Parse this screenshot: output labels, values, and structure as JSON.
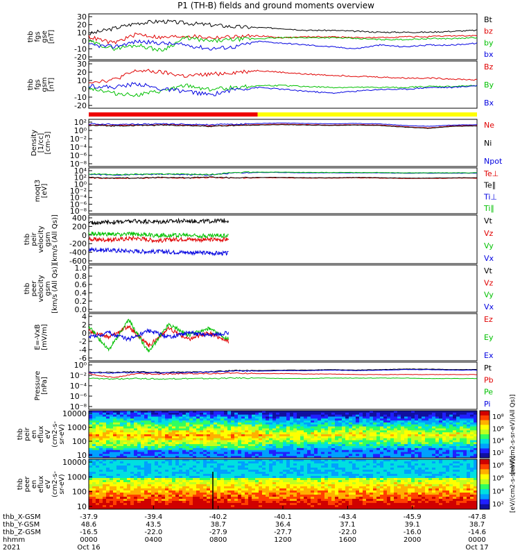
{
  "title": "P1 (TH-B) fields and ground moments overview",
  "chart_data": [
    {
      "type": "line",
      "panel_id": "fgs_gse",
      "ylabel": [
        "thb",
        "fgs",
        "gse",
        "[nT]"
      ],
      "yticks": [
        "30",
        "20",
        "10",
        "0",
        "-10",
        "-20"
      ],
      "ylim": [
        -20,
        30
      ],
      "legend_position": "right",
      "series": [
        {
          "name": "Bt",
          "color": "#000000",
          "values": [
            8,
            14,
            20,
            22,
            20,
            18,
            16,
            15,
            14,
            12,
            12,
            11,
            10,
            10,
            10,
            11,
            12
          ]
        },
        {
          "name": "bz",
          "color": "#e00000",
          "values": [
            5,
            -2,
            8,
            4,
            6,
            4,
            5,
            6,
            4,
            5,
            5,
            4,
            4,
            5,
            5,
            6,
            6
          ]
        },
        {
          "name": "by",
          "color": "#00c000",
          "values": [
            0,
            -8,
            -4,
            -10,
            4,
            0,
            2,
            3,
            4,
            4,
            4,
            3,
            2,
            2,
            3,
            3,
            4
          ]
        },
        {
          "name": "bx",
          "color": "#0000e0",
          "values": [
            -4,
            -6,
            0,
            -2,
            -4,
            -8,
            -6,
            0,
            -2,
            -4,
            -6,
            -8,
            -4,
            -6,
            -4,
            -4,
            -2
          ]
        }
      ]
    },
    {
      "type": "line",
      "panel_id": "fgs_gsm",
      "ylabel": [
        "thb",
        "fgs",
        "gsm",
        "[nT]"
      ],
      "yticks": [
        "30",
        "20",
        "10",
        "0",
        "-10",
        "-20"
      ],
      "ylim": [
        -20,
        30
      ],
      "legend_position": "right",
      "series": [
        {
          "name": "Bz",
          "color": "#e00000",
          "values": [
            8,
            10,
            20,
            18,
            14,
            16,
            18,
            20,
            18,
            16,
            15,
            14,
            13,
            12,
            12,
            11,
            10
          ]
        },
        {
          "name": "By",
          "color": "#00c000",
          "values": [
            2,
            -4,
            -6,
            -2,
            4,
            0,
            2,
            4,
            4,
            3,
            2,
            2,
            2,
            2,
            3,
            3,
            4
          ]
        },
        {
          "name": "Bx",
          "color": "#0000e0",
          "values": [
            4,
            2,
            6,
            0,
            -2,
            -6,
            0,
            2,
            0,
            -2,
            -4,
            -2,
            0,
            0,
            2,
            2,
            4
          ]
        }
      ]
    },
    {
      "type": "line",
      "panel_id": "density",
      "ylabel": [
        "Density",
        "[1/cc]",
        "[cm-3]"
      ],
      "yticks": [
        "10²",
        "10⁰",
        "10⁻²",
        "10⁻⁴",
        "10⁻⁶",
        "10⁻⁸"
      ],
      "log_scale": true,
      "ylim_exp": [
        -9,
        2.5
      ],
      "legend_position": "right",
      "series": [
        {
          "name": "Ne",
          "color": "#e00000",
          "values": [
            1.2,
            1.0,
            1.1,
            1.2,
            1.1,
            0.9,
            1.1,
            1.2,
            1.3,
            1.2,
            1.1,
            1.2,
            1.1,
            0.7,
            0.4,
            0.9,
            1.0
          ]
        },
        {
          "name": "Ni",
          "color": "#000000",
          "values": [
            1.0,
            0.9,
            1.0,
            1.1,
            1.0,
            0.8,
            1.0,
            1.1,
            1.2,
            1.1,
            1.0,
            1.1,
            1.0,
            0.6,
            0.3,
            0.8,
            0.9
          ]
        },
        {
          "name": "Npot",
          "color": "#0000e0",
          "values": [
            1.4,
            1.3,
            1.3,
            1.4,
            1.3,
            1.2,
            1.3,
            1.5,
            1.6,
            1.5,
            1.4,
            1.5,
            1.4,
            1.0,
            0.8,
            1.1,
            1.2
          ]
        }
      ]
    },
    {
      "type": "line",
      "panel_id": "temperature",
      "ylabel": [
        "moqt3",
        "[eV]"
      ],
      "yticks": [
        "10⁴",
        "10²",
        "10⁰",
        "10⁻²",
        "10⁻⁴",
        "10⁻⁶",
        "10⁻⁸"
      ],
      "log_scale": true,
      "ylim_exp": [
        -9,
        4
      ],
      "legend_position": "right",
      "series": [
        {
          "name": "Te⊥",
          "color": "#e00000",
          "values": [
            1.2,
            1.0,
            1.1,
            1.2,
            1.1,
            1.3,
            1.1,
            1.2,
            1.2,
            1.1,
            1.1,
            1.2,
            1.1,
            1.0,
            1.0,
            1.1,
            1.1
          ]
        },
        {
          "name": "Te∥",
          "color": "#000000",
          "values": [
            1.3,
            1.1,
            1.2,
            1.3,
            1.2,
            1.4,
            1.2,
            1.3,
            1.3,
            1.2,
            1.2,
            1.3,
            1.2,
            1.1,
            1.1,
            1.2,
            1.2
          ]
        },
        {
          "name": "Ti⊥",
          "color": "#0000e0",
          "values": [
            2.2,
            2.0,
            2.1,
            2.2,
            2.1,
            2.0,
            2.6,
            2.7,
            2.7,
            2.6,
            2.6,
            2.6,
            2.6,
            2.5,
            2.5,
            2.5,
            2.5
          ]
        },
        {
          "name": "Ti∥",
          "color": "#00c000",
          "values": [
            2.3,
            2.1,
            2.2,
            2.3,
            2.2,
            2.1,
            2.7,
            2.8,
            2.8,
            2.7,
            2.7,
            2.7,
            2.7,
            2.6,
            2.6,
            2.6,
            2.6
          ]
        }
      ]
    },
    {
      "type": "line",
      "panel_id": "peir_velocity",
      "ylabel": [
        "thb",
        "peir",
        "velocity",
        "gsm",
        "[km/s (All Qs)]"
      ],
      "yticks": [
        "400",
        "200",
        "0",
        "-200",
        "-400",
        "-600"
      ],
      "ylim": [
        -600,
        500
      ],
      "xmax_fraction": 0.36,
      "legend_position": "right",
      "series": [
        {
          "name": "Vt",
          "color": "#000000",
          "values": [
            320,
            340,
            360,
            350,
            370,
            360,
            380
          ]
        },
        {
          "name": "Vz",
          "color": "#e00000",
          "values": [
            -50,
            -60,
            -20,
            -80,
            -40,
            -60,
            -50
          ]
        },
        {
          "name": "Vy",
          "color": "#00c000",
          "values": [
            80,
            60,
            70,
            40,
            50,
            30,
            40
          ]
        },
        {
          "name": "Vx",
          "color": "#0000e0",
          "values": [
            -280,
            -300,
            -320,
            -330,
            -340,
            -360,
            -370
          ]
        }
      ]
    },
    {
      "type": "line",
      "panel_id": "peer_velocity",
      "ylabel": [
        "thb",
        "peer",
        "velocity",
        "gsm",
        "[km/s (All Qs)]"
      ],
      "yticks": [
        "1.0",
        "0.8",
        "0.6",
        "0.4",
        "0.2",
        "0.0"
      ],
      "ylim": [
        0,
        1
      ],
      "legend_position": "right",
      "series": [
        {
          "name": "Vt",
          "color": "#000000",
          "values": []
        },
        {
          "name": "Vz",
          "color": "#e00000",
          "values": []
        },
        {
          "name": "Vy",
          "color": "#00c000",
          "values": []
        },
        {
          "name": "Vx",
          "color": "#0000e0",
          "values": []
        }
      ]
    },
    {
      "type": "line",
      "panel_id": "efield",
      "ylabel": [
        "E=-VxB",
        "[mV/m]"
      ],
      "yticks": [
        "4",
        "2",
        "0",
        "-2",
        "-4",
        "-6"
      ],
      "ylim": [
        -6,
        5
      ],
      "xmax_fraction": 0.36,
      "legend_position": "right",
      "series": [
        {
          "name": "Ez",
          "color": "#e00000",
          "values": [
            1.0,
            -0.5,
            2.0,
            -2.5,
            1.5,
            -1.0,
            0.5,
            -1.5
          ]
        },
        {
          "name": "Ey",
          "color": "#00c000",
          "values": [
            2.0,
            -3.5,
            3.5,
            -4.0,
            2.5,
            0.0,
            1.5,
            -1.0
          ]
        },
        {
          "name": "Ex",
          "color": "#0000e0",
          "values": [
            -0.5,
            0.5,
            -1.0,
            1.0,
            -0.5,
            0.5,
            0.0,
            0.5
          ]
        }
      ]
    },
    {
      "type": "line",
      "panel_id": "pressure",
      "ylabel": [
        "Pressure",
        "[nPa]"
      ],
      "yticks": [
        "10⁰",
        "10⁻²",
        "10⁻⁴",
        "10⁻⁶",
        "10⁻⁸"
      ],
      "log_scale": true,
      "ylim_exp": [
        -9,
        0.5
      ],
      "legend_position": "right",
      "series": [
        {
          "name": "Pt",
          "color": "#000000",
          "values": [
            -1.5,
            -1.6,
            -1.4,
            -1.6,
            -1.5,
            -1.4,
            -1.2,
            -1.2,
            -1.1,
            -1.1,
            -1.0,
            -1.1,
            -1.0,
            -0.9,
            -0.9,
            -1.0,
            -1.0
          ]
        },
        {
          "name": "Pb",
          "color": "#e00000",
          "values": [
            -1.8,
            -2.6,
            -1.8,
            -1.9,
            -1.8,
            -1.8,
            -1.7,
            -1.8,
            -1.8,
            -1.9,
            -1.9,
            -2.0,
            -2.0,
            -2.0,
            -2.0,
            -2.0,
            -2.0
          ]
        },
        {
          "name": "Pe",
          "color": "#00c000",
          "values": [
            -2.8,
            -2.9,
            -2.8,
            -2.9,
            -2.8,
            -2.8,
            -2.7,
            -2.7,
            -2.8,
            -2.8,
            -2.7,
            -2.7,
            -2.7,
            -2.7,
            -2.8,
            -2.8,
            -2.8
          ]
        },
        {
          "name": "Pi",
          "color": "#0000e0",
          "values": [
            -1.6,
            -1.7,
            -1.5,
            -1.7,
            -1.6,
            -1.5,
            -1.3,
            -1.3,
            -1.2,
            -1.2,
            -1.1,
            -1.2,
            -1.1,
            -1.0,
            -1.0,
            -1.1,
            -1.1
          ]
        }
      ]
    },
    {
      "type": "heatmap",
      "panel_id": "peir_spectrogram",
      "ylabel": [
        "thb",
        "peir",
        "en",
        "eflux",
        "eV",
        "(cm2-s-",
        "sr-eV)"
      ],
      "yticks": [
        "10000",
        "1000",
        "100",
        "10"
      ],
      "colorbar_ticks": [
        "10⁸",
        "10⁶",
        "10⁴",
        "10²"
      ],
      "colorbar_label": "[eV/(cm2-s-sr-eV)(All Qs)]"
    },
    {
      "type": "heatmap",
      "panel_id": "peer_spectrogram",
      "ylabel": [
        "thb",
        "peer",
        "en",
        "eflux",
        "eV",
        "(cm2-s-",
        "sr-eV)"
      ],
      "yticks": [
        "10000",
        "1000",
        "100",
        "10"
      ],
      "colorbar_ticks": [
        "10⁸",
        "10⁶",
        "10⁴",
        "10²"
      ],
      "colorbar_label": "[eV/(cm2-s-sr-eV)]"
    }
  ],
  "mode_bar": {
    "colors": {
      "red": "#ee0000",
      "yellow": "#ffff00"
    },
    "red_until_fraction": 0.435
  },
  "time_axis": {
    "rows": [
      {
        "label": "thb_X-GSM",
        "values": [
          "-37.9",
          "-39.4",
          "-40.2",
          "-40.1",
          "-43.4",
          "-45.9",
          "-47.8"
        ]
      },
      {
        "label": "thb_Y-GSM",
        "values": [
          "48.6",
          "43.5",
          "38.7",
          "36.4",
          "37.1",
          "39.1",
          "38.7"
        ]
      },
      {
        "label": "thb_Z-GSM",
        "values": [
          "-16.5",
          "-22.0",
          "-27.9",
          "-27.7",
          "-22.0",
          "-16.0",
          "-14.6"
        ]
      },
      {
        "label": "hhmm",
        "values": [
          "0000",
          "0400",
          "0800",
          "1200",
          "1600",
          "2000",
          "0000"
        ]
      },
      {
        "label": "2021",
        "values": [
          "Oct 16",
          "",
          "",
          "",
          "",
          "",
          "Oct 17"
        ]
      }
    ]
  }
}
